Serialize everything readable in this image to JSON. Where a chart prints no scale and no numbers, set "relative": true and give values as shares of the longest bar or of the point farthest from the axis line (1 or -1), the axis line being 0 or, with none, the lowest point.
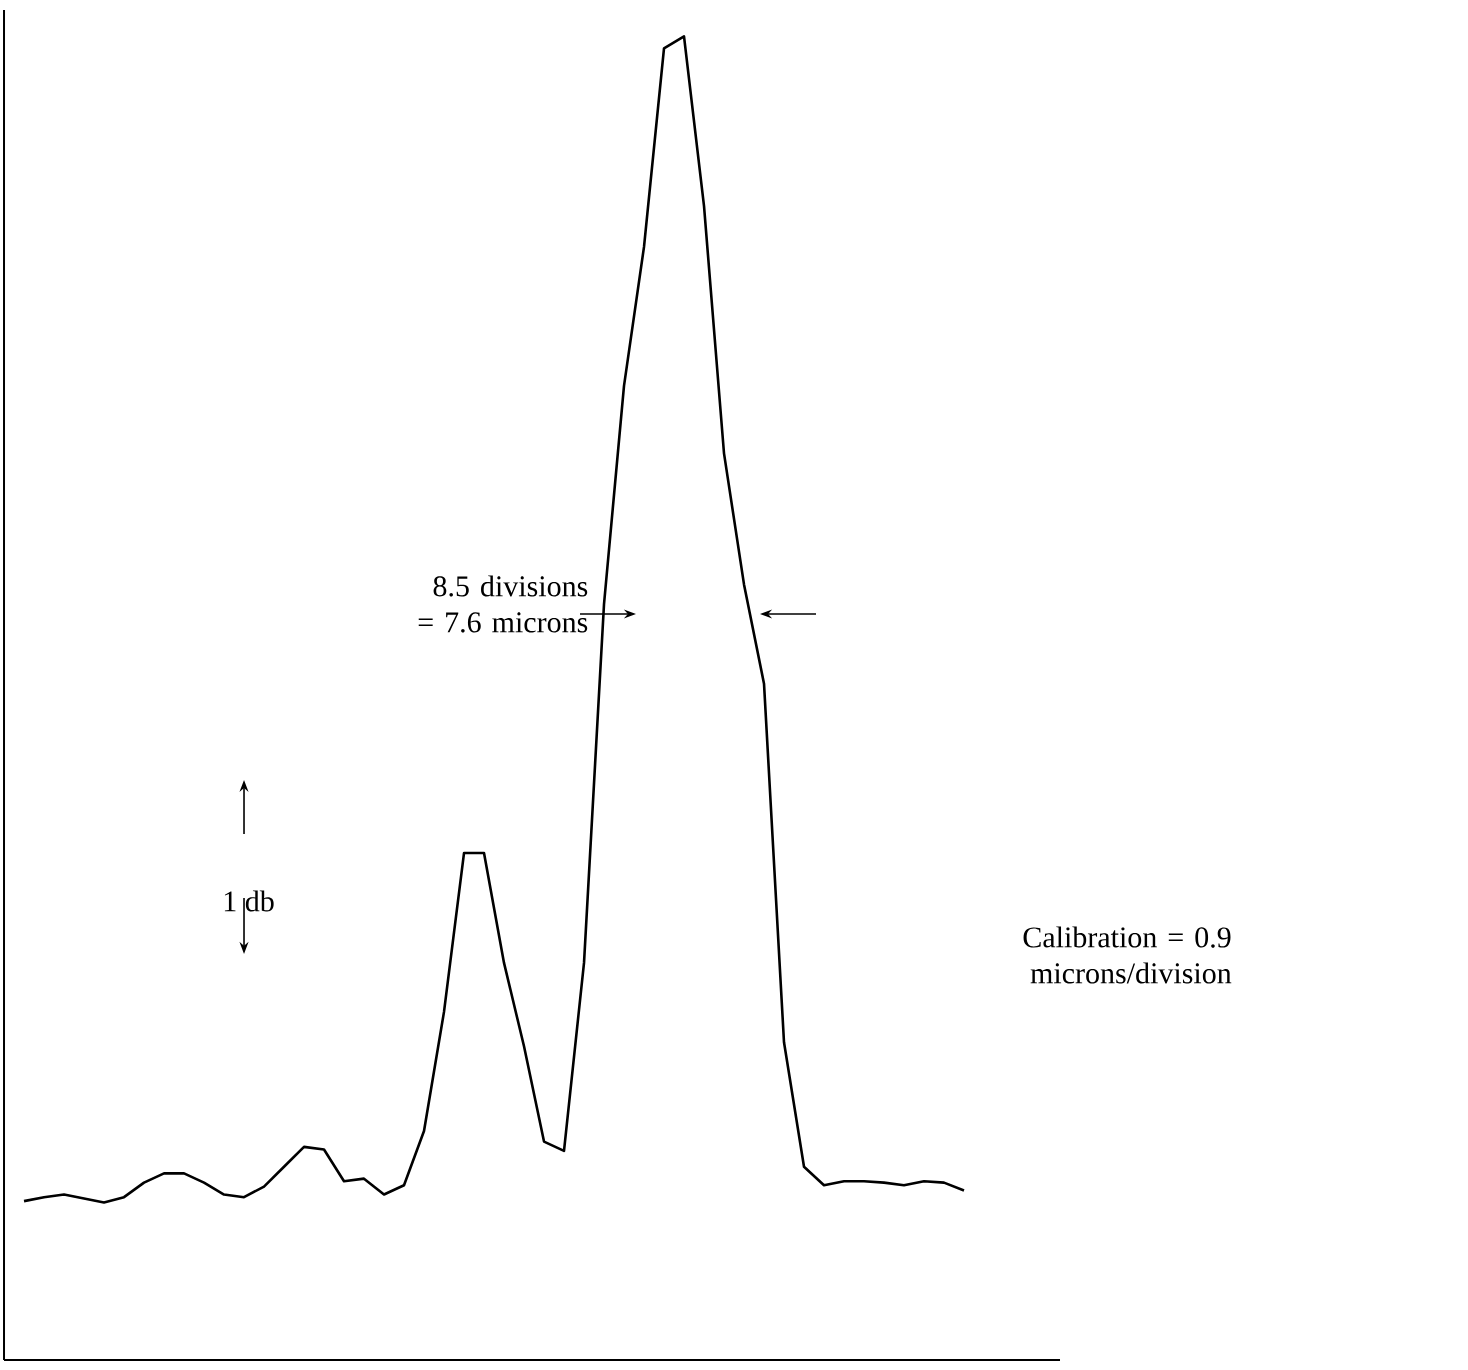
{
  "chart_data": {
    "type": "line",
    "relative": true,
    "color": "#000000",
    "categories": [
      null,
      null,
      null,
      null,
      null,
      null,
      null,
      null,
      null,
      null,
      null,
      null,
      null,
      null,
      null,
      null,
      null,
      null,
      null,
      null,
      null,
      null,
      null,
      null,
      null,
      null,
      null,
      null,
      null,
      null,
      null,
      null,
      null,
      null,
      null,
      null,
      null,
      null,
      null,
      null,
      null,
      null,
      null,
      null,
      null,
      null,
      null,
      null
    ],
    "values": [
      0.12,
      0.123,
      0.125,
      0.122,
      0.119,
      0.123,
      0.134,
      0.141,
      0.141,
      0.134,
      0.125,
      0.123,
      0.131,
      0.146,
      0.161,
      0.159,
      0.135,
      0.137,
      0.125,
      0.132,
      0.173,
      0.263,
      0.383,
      0.383,
      0.3,
      0.237,
      0.165,
      0.158,
      0.3,
      0.571,
      0.736,
      0.841,
      0.991,
      1.0,
      0.872,
      0.685,
      0.586,
      0.511,
      0.24,
      0.146,
      0.132,
      0.135,
      0.135,
      0.134,
      0.132,
      0.135,
      0.134,
      0.128
    ],
    "annotations": [
      "8.5 divisions = 7.6 microns",
      "1 db",
      "Calibration = 0.9 microns/division"
    ]
  }
}
